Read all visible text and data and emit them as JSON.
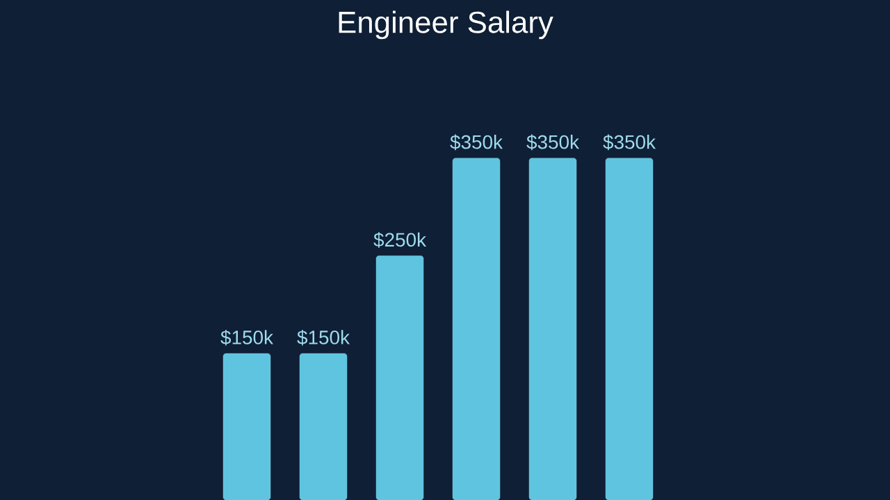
{
  "chart_data": {
    "type": "bar",
    "title": "Engineer Salary",
    "categories": [
      null,
      null,
      null,
      null,
      null,
      null
    ],
    "values": [
      150,
      150,
      250,
      350,
      350,
      350
    ],
    "value_labels": [
      "$150k",
      "$150k",
      "$250k",
      "$350k",
      "$350k",
      "$350k"
    ],
    "color": "#5ec4e0"
  }
}
